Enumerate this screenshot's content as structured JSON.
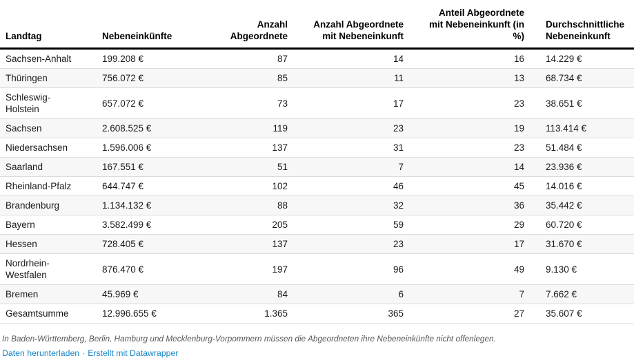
{
  "chart_data": {
    "type": "table",
    "columns": [
      {
        "label": "Landtag",
        "align": "left"
      },
      {
        "label": "Nebeneinkünfte",
        "align": "left"
      },
      {
        "label": "Anzahl Abgeordnete",
        "align": "right"
      },
      {
        "label": "Anzahl Abgeordnete mit Nebeneinkunft",
        "align": "right"
      },
      {
        "label": "Anteil Abgeordnete mit Nebeneinkunft (in %)",
        "align": "right"
      },
      {
        "label": "Durchschnittliche Nebeneinkunft",
        "align": "left"
      }
    ],
    "rows": [
      [
        "Sachsen-Anhalt",
        "199.208 €",
        "87",
        "14",
        "16",
        "14.229 €"
      ],
      [
        "Thüringen",
        "756.072 €",
        "85",
        "11",
        "13",
        "68.734 €"
      ],
      [
        "Schleswig-Holstein",
        "657.072 €",
        "73",
        "17",
        "23",
        "38.651 €"
      ],
      [
        "Sachsen",
        "2.608.525 €",
        "119",
        "23",
        "19",
        "113.414 €"
      ],
      [
        "Niedersachsen",
        "1.596.006 €",
        "137",
        "31",
        "23",
        "51.484 €"
      ],
      [
        "Saarland",
        "167.551 €",
        "51",
        "7",
        "14",
        "23.936 €"
      ],
      [
        "Rheinland-Pfalz",
        "644.747 €",
        "102",
        "46",
        "45",
        "14.016 €"
      ],
      [
        "Brandenburg",
        "1.134.132 €",
        "88",
        "32",
        "36",
        "35.442 €"
      ],
      [
        "Bayern",
        "3.582.499 €",
        "205",
        "59",
        "29",
        "60.720 €"
      ],
      [
        "Hessen",
        "728.405 €",
        "137",
        "23",
        "17",
        "31.670 €"
      ],
      [
        "Nordrhein-Westfalen",
        "876.470 €",
        "197",
        "96",
        "49",
        "9.130 €"
      ],
      [
        "Bremen",
        "45.969 €",
        "84",
        "6",
        "7",
        "7.662 €"
      ],
      [
        "Gesamtsumme",
        "12.996.655 €",
        "1.365",
        "365",
        "27",
        "35.607 €"
      ]
    ],
    "title": "",
    "grid": "horizontal-row-dividers",
    "zebra_striping": true
  },
  "footer": {
    "note": "In Baden-Württemberg, Berlin, Hamburg und Mecklenburg-Vorpommern müssen die Abgeordneten ihre Nebeneinkünfte nicht offenlegen.",
    "links": [
      {
        "label": "Daten herunterladen"
      },
      {
        "label": "Erstellt mit Datawrapper"
      }
    ],
    "separator": "·"
  },
  "colors": {
    "background": "#ffffff",
    "text": "#1a1a1a",
    "zebra_row": "#f7f7f7",
    "row_divider": "#dcdcdc",
    "header_rule": "#000000",
    "footnote_text": "#575757",
    "link": "#1785c5"
  }
}
